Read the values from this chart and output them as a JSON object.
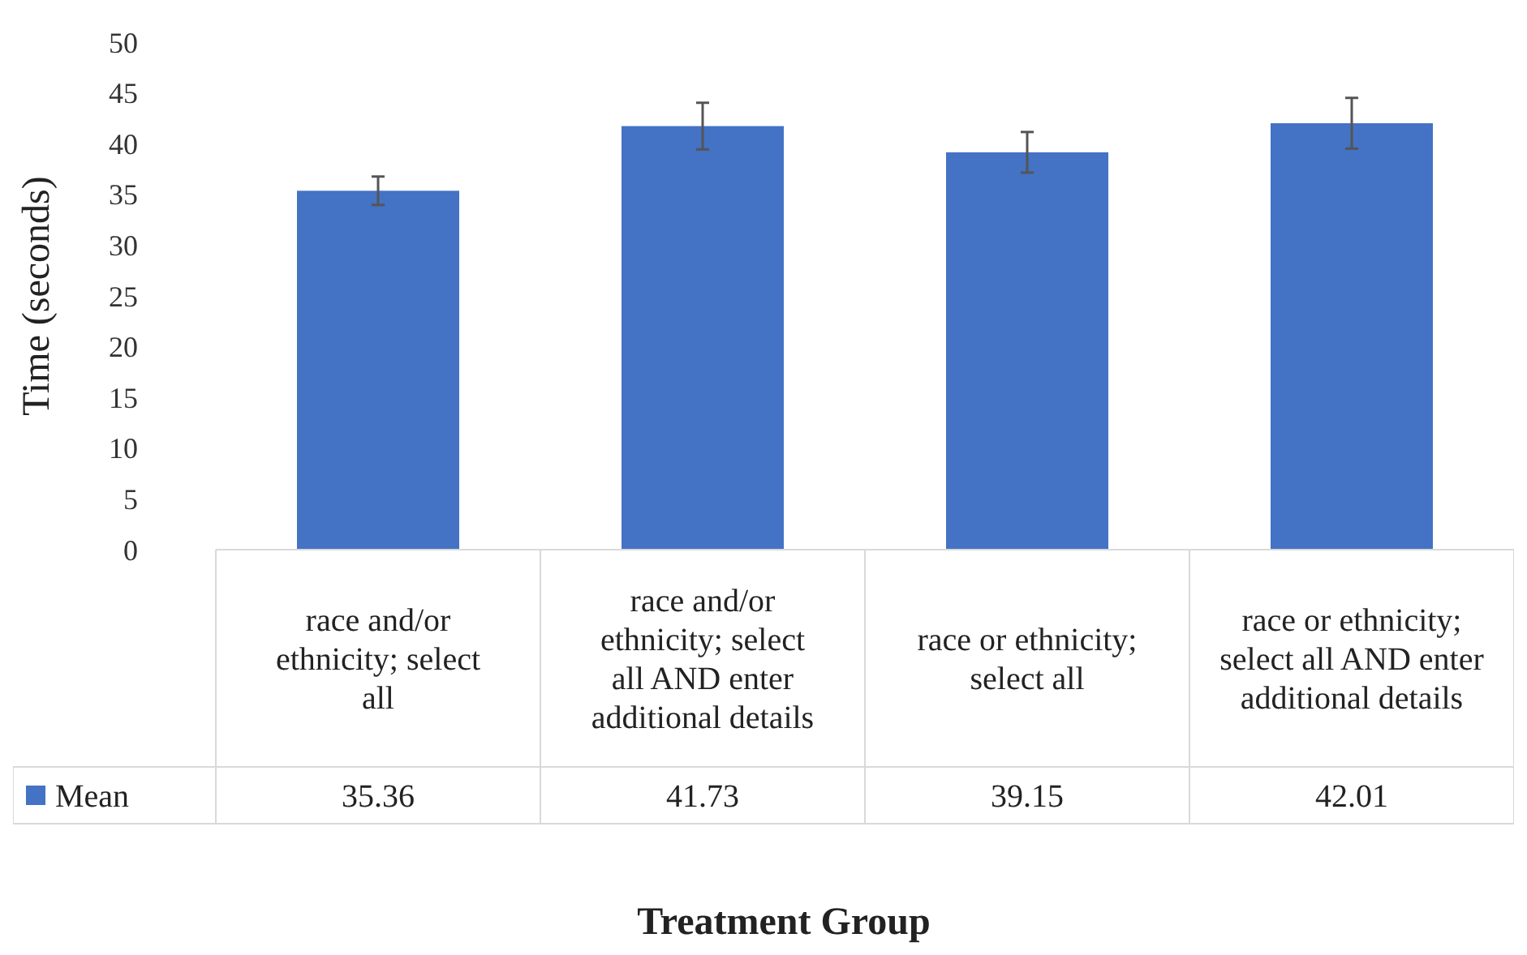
{
  "chart_data": {
    "type": "bar",
    "xlabel": "Treatment Group",
    "ylabel": "Time (seconds)",
    "categories": [
      "race and/or ethnicity; select all",
      "race and/or ethnicity; select all AND enter additional details",
      "race or ethnicity; select all",
      "race or ethnicity; select all AND enter additional details"
    ],
    "series": [
      {
        "name": "Mean",
        "color": "#4472c4",
        "values": [
          35.36,
          41.73,
          39.15,
          42.01
        ],
        "errors": [
          1.4,
          2.3,
          2.0,
          2.5
        ]
      }
    ],
    "ylim": [
      0,
      50
    ],
    "yticks": [
      0,
      5,
      10,
      15,
      20,
      25,
      30,
      35,
      40,
      45,
      50
    ],
    "data_labels": true,
    "legend": "bottom",
    "grid": false
  }
}
